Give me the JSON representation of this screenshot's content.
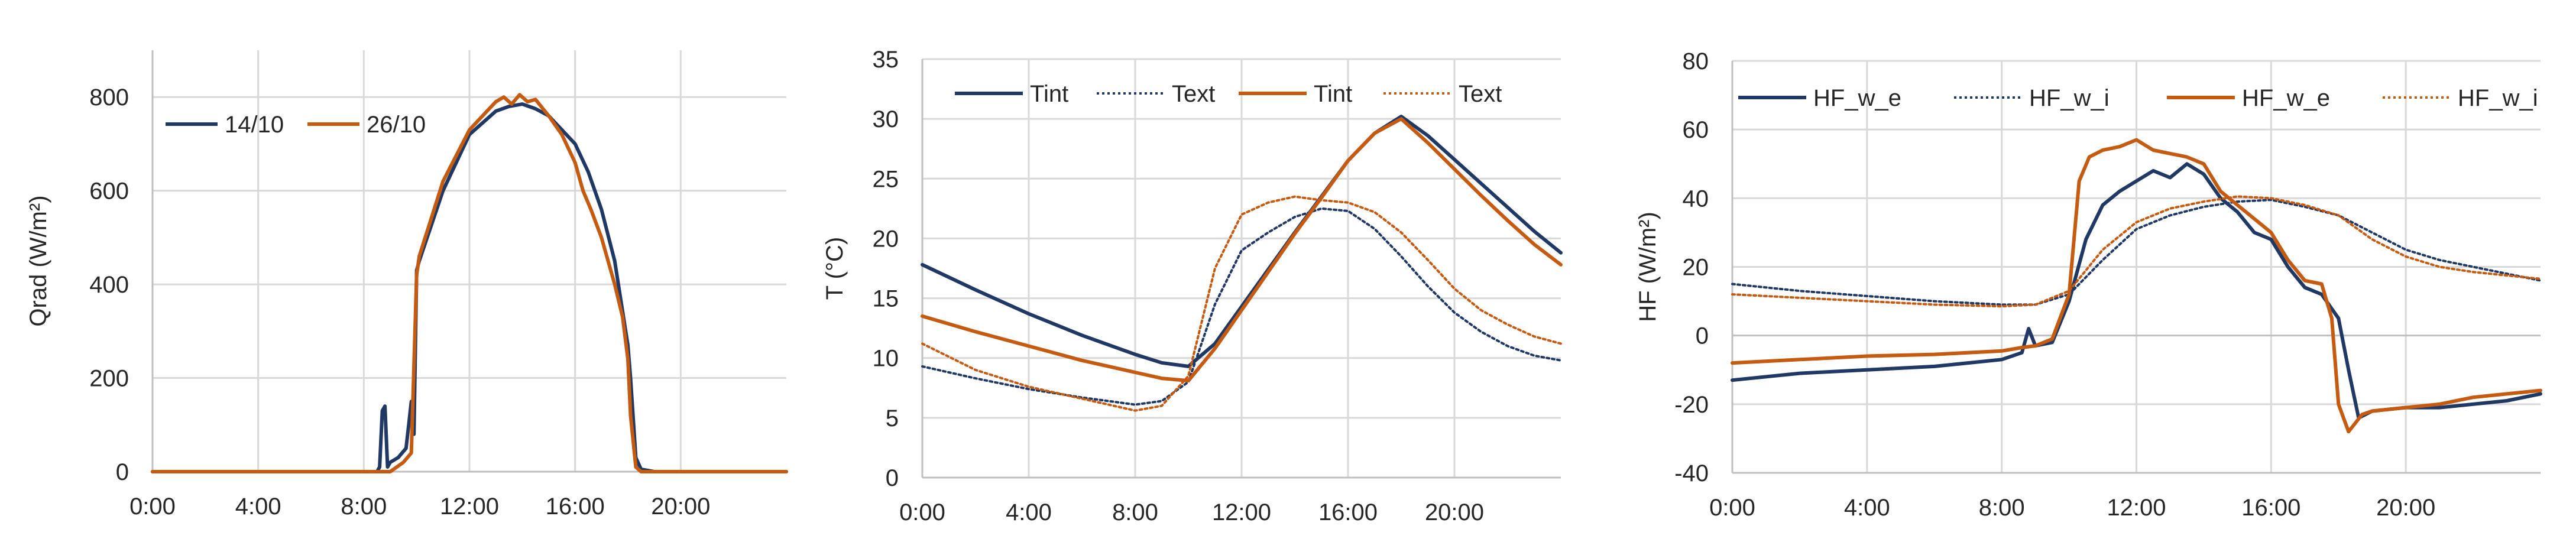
{
  "colors": {
    "navy": "#1f3864",
    "orange": "#c55a11"
  },
  "charts": [
    {
      "type": "line",
      "ylabel": "Qrad (W/m²)",
      "xticks": [
        "0:00",
        "4:00",
        "8:00",
        "12:00",
        "16:00",
        "20:00"
      ],
      "yticks": [
        "0",
        "200",
        "400",
        "600",
        "800"
      ],
      "legend": [
        "14/10",
        "26/10"
      ]
    },
    {
      "type": "line",
      "ylabel": "T (°C)",
      "xticks": [
        "0:00",
        "4:00",
        "8:00",
        "12:00",
        "16:00",
        "20:00"
      ],
      "yticks": [
        "0",
        "5",
        "10",
        "15",
        "20",
        "25",
        "30",
        "35"
      ],
      "legend": [
        "Tint",
        "Text",
        "Tint",
        "Text"
      ]
    },
    {
      "type": "line",
      "ylabel": "HF (W/m²)",
      "xticks": [
        "0:00",
        "4:00",
        "8:00",
        "12:00",
        "16:00",
        "20:00"
      ],
      "yticks": [
        "-40",
        "-20",
        "0",
        "20",
        "40",
        "60",
        "80"
      ],
      "legend": [
        "HF_w_e",
        "HF_w_i",
        "HF_w_e",
        "HF_w_i"
      ]
    }
  ],
  "chart_data": [
    {
      "type": "line",
      "title": "",
      "xlabel": "",
      "ylabel": "Qrad (W/m²)",
      "xlim": [
        0,
        24
      ],
      "ylim": [
        0,
        900
      ],
      "legend_position": "top-left",
      "series": [
        {
          "name": "14/10",
          "color": "#1f3864",
          "dash": "solid",
          "x": [
            0,
            8.5,
            8.6,
            8.7,
            8.8,
            8.9,
            9.0,
            9.3,
            9.6,
            9.7,
            9.8,
            9.9,
            10.0,
            10.1,
            11,
            12,
            13,
            13.5,
            14,
            14.5,
            15,
            16,
            16.5,
            17,
            17.5,
            18,
            18.1,
            18.3,
            18.5,
            19,
            24
          ],
          "y": [
            0,
            0,
            10,
            130,
            140,
            10,
            20,
            30,
            50,
            100,
            150,
            80,
            430,
            450,
            600,
            720,
            770,
            780,
            785,
            775,
            760,
            700,
            640,
            560,
            450,
            270,
            200,
            30,
            5,
            0,
            0
          ]
        },
        {
          "name": "26/10",
          "color": "#c55a11",
          "dash": "solid",
          "x": [
            0,
            9.0,
            9.5,
            9.8,
            10.0,
            10.1,
            11,
            12,
            13,
            13.3,
            13.6,
            13.9,
            14.2,
            14.5,
            15,
            15.5,
            16,
            16.3,
            16.6,
            17,
            17.5,
            17.8,
            18.0,
            18.1,
            18.3,
            18.5,
            24
          ],
          "y": [
            0,
            0,
            20,
            40,
            420,
            460,
            620,
            730,
            790,
            800,
            785,
            805,
            790,
            795,
            760,
            720,
            660,
            600,
            560,
            500,
            400,
            330,
            240,
            120,
            10,
            0,
            0
          ]
        }
      ]
    },
    {
      "type": "line",
      "title": "",
      "xlabel": "",
      "ylabel": "T (°C)",
      "xlim": [
        0,
        24
      ],
      "ylim": [
        0,
        35
      ],
      "legend_position": "top",
      "series": [
        {
          "name": "Tint",
          "color": "#1f3864",
          "dash": "solid",
          "x": [
            0,
            2,
            4,
            6,
            8,
            9,
            10,
            11,
            12,
            13,
            14,
            15,
            16,
            17,
            18,
            19,
            20,
            21,
            22,
            23,
            24
          ],
          "y": [
            17.8,
            15.7,
            13.7,
            11.9,
            10.3,
            9.6,
            9.3,
            11.2,
            14.3,
            17.4,
            20.5,
            23.5,
            26.5,
            28.8,
            30.2,
            28.6,
            26.6,
            24.6,
            22.6,
            20.6,
            18.8
          ]
        },
        {
          "name": "Text",
          "color": "#1f3864",
          "dash": "dotted",
          "x": [
            0,
            2,
            4,
            6,
            8,
            9,
            10,
            11,
            12,
            13,
            14,
            15,
            16,
            17,
            18,
            19,
            20,
            21,
            22,
            23,
            24
          ],
          "y": [
            9.3,
            8.3,
            7.4,
            6.7,
            6.1,
            6.4,
            8.0,
            14.5,
            19.0,
            20.5,
            21.8,
            22.5,
            22.3,
            20.8,
            18.5,
            16.0,
            13.8,
            12.2,
            11.0,
            10.2,
            9.8
          ]
        },
        {
          "name": "Tint",
          "color": "#c55a11",
          "dash": "solid",
          "x": [
            0,
            2,
            4,
            6,
            8,
            9,
            10,
            11,
            12,
            13,
            14,
            15,
            16,
            17,
            18,
            19,
            20,
            21,
            22,
            23,
            24
          ],
          "y": [
            13.5,
            12.2,
            11.0,
            9.8,
            8.8,
            8.3,
            8.1,
            10.8,
            14.0,
            17.2,
            20.4,
            23.4,
            26.5,
            28.8,
            30.0,
            28.0,
            25.8,
            23.6,
            21.5,
            19.5,
            17.8
          ]
        },
        {
          "name": "Text",
          "color": "#c55a11",
          "dash": "dotted",
          "x": [
            0,
            2,
            4,
            6,
            8,
            9,
            10,
            11,
            12,
            13,
            14,
            15,
            16,
            17,
            18,
            19,
            20,
            21,
            22,
            23,
            24
          ],
          "y": [
            11.2,
            9.0,
            7.6,
            6.6,
            5.6,
            6.0,
            8.5,
            17.5,
            22.0,
            23.0,
            23.5,
            23.2,
            23.0,
            22.2,
            20.5,
            18.2,
            15.8,
            14.0,
            12.8,
            11.8,
            11.2
          ]
        }
      ]
    },
    {
      "type": "line",
      "title": "",
      "xlabel": "",
      "ylabel": "HF (W/m²)",
      "xlim": [
        0,
        24
      ],
      "ylim": [
        -40,
        80
      ],
      "legend_position": "top",
      "series": [
        {
          "name": "HF_w_e",
          "color": "#1f3864",
          "dash": "solid",
          "x": [
            0,
            2,
            4,
            6,
            8,
            8.6,
            8.8,
            9.0,
            9.5,
            10.0,
            10.5,
            11,
            11.5,
            12,
            12.5,
            13,
            13.5,
            14,
            14.5,
            15,
            15.5,
            16,
            16.5,
            17,
            17.5,
            18,
            18.3,
            18.6,
            19,
            20,
            21,
            22,
            23,
            24
          ],
          "y": [
            -13,
            -11,
            -10,
            -9,
            -7,
            -5,
            2,
            -3,
            -2,
            10,
            28,
            38,
            42,
            45,
            48,
            46,
            50,
            47,
            40,
            36,
            30,
            28,
            20,
            14,
            12,
            5,
            -10,
            -24,
            -22,
            -21,
            -21,
            -20,
            -19,
            -17
          ]
        },
        {
          "name": "HF_w_i",
          "color": "#1f3864",
          "dash": "dotted",
          "x": [
            0,
            2,
            4,
            6,
            8,
            9,
            10,
            11,
            12,
            13,
            14,
            15,
            16,
            17,
            18,
            19,
            20,
            21,
            22,
            23,
            24
          ],
          "y": [
            15,
            13,
            11.5,
            10,
            9,
            9,
            12,
            22,
            31,
            35,
            37.5,
            39,
            39.5,
            37.5,
            35,
            30,
            25,
            22,
            20,
            18,
            16
          ]
        },
        {
          "name": "HF_w_e",
          "color": "#c55a11",
          "dash": "solid",
          "x": [
            0,
            2,
            4,
            6,
            8,
            8.6,
            9.0,
            9.5,
            10.0,
            10.3,
            10.6,
            11,
            11.5,
            12,
            12.5,
            13,
            13.5,
            14,
            14.5,
            15,
            15.5,
            16,
            16.5,
            17,
            17.5,
            17.8,
            18.0,
            18.3,
            18.7,
            19,
            20,
            21,
            22,
            23,
            24
          ],
          "y": [
            -8,
            -7,
            -6,
            -5.5,
            -4.5,
            -3.5,
            -3,
            -1,
            12,
            45,
            52,
            54,
            55,
            57,
            54,
            53,
            52,
            50,
            42,
            38,
            34,
            30,
            22,
            16,
            15,
            5,
            -20,
            -28,
            -23,
            -22,
            -21,
            -20,
            -18,
            -17,
            -16
          ]
        },
        {
          "name": "HF_w_i",
          "color": "#c55a11",
          "dash": "dotted",
          "x": [
            0,
            2,
            4,
            6,
            8,
            9,
            10,
            11,
            12,
            13,
            14,
            15,
            16,
            17,
            18,
            19,
            20,
            21,
            22,
            23,
            24
          ],
          "y": [
            12,
            11,
            10,
            9,
            8.5,
            9,
            13,
            25,
            33,
            37,
            39,
            40.5,
            40,
            38,
            35,
            28,
            23,
            20,
            18.5,
            17.5,
            16.5
          ]
        }
      ]
    }
  ]
}
